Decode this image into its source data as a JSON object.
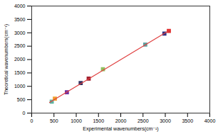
{
  "chart_data": {
    "type": "scatter",
    "x_label": "Experimental wavenumbers(cm⁻¹)",
    "y_label": "Theoretical wavenumbers(cm⁻¹)",
    "xlim": [
      0,
      4000
    ],
    "ylim": [
      0,
      4000
    ],
    "xticks": [
      0,
      500,
      1000,
      1500,
      2000,
      2500,
      3000,
      3500,
      4000
    ],
    "yticks": [
      0,
      500,
      1000,
      1500,
      2000,
      2500,
      3000,
      3500,
      4000
    ],
    "grid": false,
    "series": [
      {
        "type": "scatter",
        "marker": "square",
        "x": [
          450,
          520,
          790,
          1100,
          1280,
          1600,
          2550,
          2980,
          3080
        ],
        "values": [
          430,
          540,
          780,
          1120,
          1290,
          1640,
          2560,
          2970,
          3070
        ],
        "colors": [
          "#5fb3a0",
          "#f0a030",
          "#7030a0",
          "#303060",
          "#a02030",
          "#90c060",
          "#60a0a0",
          "#303080",
          "#e03030"
        ]
      },
      {
        "type": "line",
        "color": "#e04040",
        "line_style": "solid",
        "x": [
          400,
          3100
        ],
        "values": [
          400,
          3100
        ]
      }
    ]
  }
}
